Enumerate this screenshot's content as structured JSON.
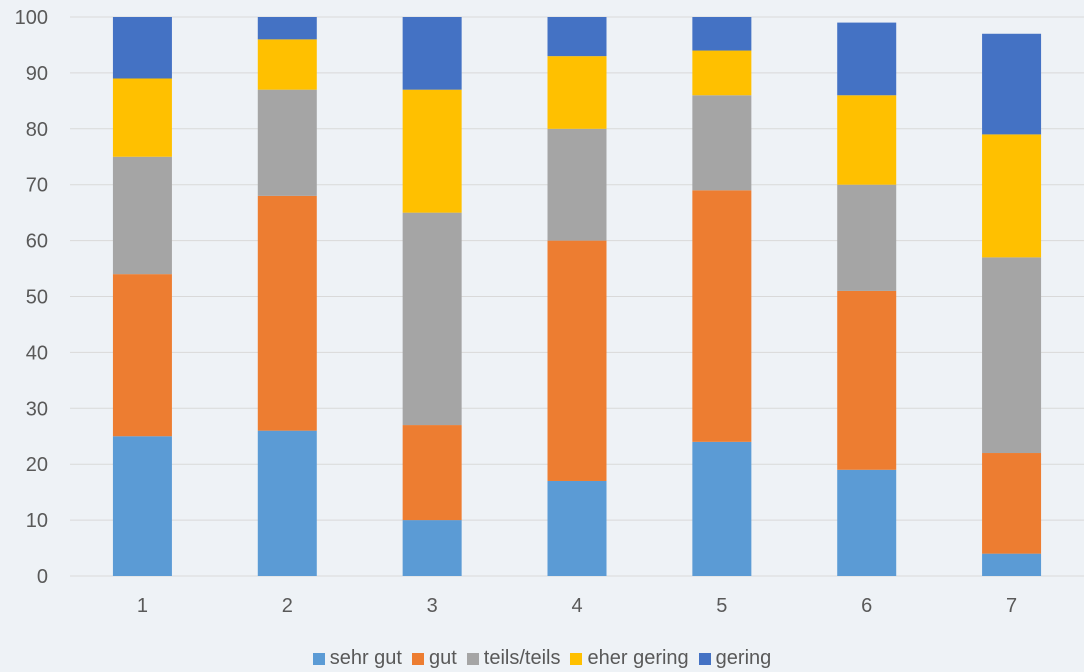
{
  "chart_data": {
    "type": "bar",
    "stacked": true,
    "categories": [
      "1",
      "2",
      "3",
      "4",
      "5",
      "6",
      "7"
    ],
    "ylim": [
      0,
      100
    ],
    "yticks": [
      0,
      10,
      20,
      30,
      40,
      50,
      60,
      70,
      80,
      90,
      100
    ],
    "grid": true,
    "legend_position": "bottom",
    "series": [
      {
        "name": "sehr gut",
        "color": "#5b9bd5",
        "values": [
          25,
          26,
          10,
          17,
          24,
          19,
          4
        ]
      },
      {
        "name": "gut",
        "color": "#ed7d31",
        "values": [
          29,
          42,
          17,
          43,
          45,
          32,
          18
        ]
      },
      {
        "name": "teils/teils",
        "color": "#a5a5a5",
        "values": [
          21,
          19,
          38,
          20,
          17,
          19,
          35
        ]
      },
      {
        "name": "eher gering",
        "color": "#ffc000",
        "values": [
          14,
          9,
          22,
          13,
          8,
          16,
          22
        ]
      },
      {
        "name": "gering",
        "color": "#4472c4",
        "values": [
          11,
          4,
          13,
          7,
          6,
          13,
          18
        ]
      }
    ]
  }
}
